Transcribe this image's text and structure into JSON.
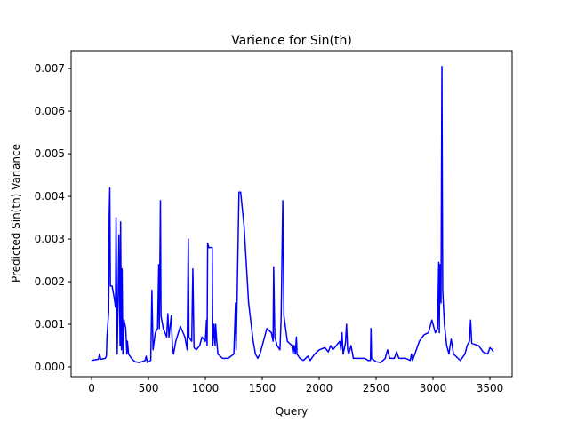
{
  "chart_data": {
    "type": "line",
    "title": "Varience for Sin(th)",
    "xlabel": "Query",
    "ylabel": "Predicted Sin(th) Variance",
    "xlim": [
      -180,
      3695
    ],
    "ylim": [
      -0.00023,
      0.00742
    ],
    "xticks": [
      0,
      500,
      1000,
      1500,
      2000,
      2500,
      3000,
      3500
    ],
    "yticks": [
      {
        "value": 0,
        "label": "0.000"
      },
      {
        "value": 0.001,
        "label": "0.001"
      },
      {
        "value": 0.002,
        "label": "0.002"
      },
      {
        "value": 0.003,
        "label": "0.003"
      },
      {
        "value": 0.004,
        "label": "0.004"
      },
      {
        "value": 0.005,
        "label": "0.005"
      },
      {
        "value": 0.006,
        "label": "0.006"
      },
      {
        "value": 0.007,
        "label": "0.007"
      }
    ],
    "series": [
      {
        "color": "#0000ff",
        "x": [
          0,
          60,
          70,
          80,
          120,
          130,
          135,
          150,
          155,
          160,
          165,
          180,
          200,
          210,
          215,
          225,
          235,
          240,
          250,
          255,
          262,
          268,
          275,
          285,
          300,
          310,
          315,
          325,
          350,
          380,
          420,
          470,
          480,
          490,
          520,
          530,
          540,
          560,
          580,
          590,
          595,
          605,
          610,
          630,
          660,
          670,
          680,
          700,
          710,
          720,
          740,
          780,
          820,
          840,
          850,
          855,
          880,
          890,
          900,
          920,
          950,
          970,
          1000,
          1010,
          1015,
          1020,
          1030,
          1060,
          1065,
          1075,
          1085,
          1090,
          1100,
          1110,
          1150,
          1200,
          1250,
          1265,
          1270,
          1280,
          1295,
          1310,
          1340,
          1380,
          1420,
          1440,
          1460,
          1480,
          1500,
          1540,
          1580,
          1595,
          1600,
          1610,
          1630,
          1655,
          1665,
          1680,
          1690,
          1720,
          1760,
          1770,
          1780,
          1790,
          1800,
          1805,
          1830,
          1860,
          1900,
          1920,
          1960,
          2000,
          2050,
          2080,
          2100,
          2120,
          2180,
          2190,
          2200,
          2210,
          2230,
          2240,
          2250,
          2260,
          2280,
          2300,
          2400,
          2430,
          2450,
          2455,
          2460,
          2500,
          2540,
          2580,
          2600,
          2620,
          2660,
          2680,
          2700,
          2760,
          2800,
          2810,
          2820,
          2880,
          2920,
          2960,
          2990,
          3000,
          3020,
          3040,
          3050,
          3055,
          3060,
          3070,
          3078,
          3085,
          3100,
          3120,
          3140,
          3150,
          3160,
          3180,
          3220,
          3240,
          3280,
          3300,
          3320,
          3330,
          3340,
          3400,
          3440,
          3480,
          3500,
          3520,
          3530
        ],
        "values": [
          0.00015,
          0.00018,
          0.0003,
          0.00018,
          0.0002,
          0.00025,
          0.0007,
          0.0013,
          0.0036,
          0.0042,
          0.0019,
          0.0019,
          0.0016,
          0.0014,
          0.0035,
          0.0003,
          0.002,
          0.0031,
          0.0005,
          0.0034,
          0.0004,
          0.0023,
          0.0003,
          0.0011,
          0.0009,
          0.0003,
          0.0006,
          0.0003,
          0.0002,
          0.00012,
          0.0001,
          0.00015,
          0.00025,
          0.0001,
          0.00015,
          0.0018,
          0.0004,
          0.0008,
          0.0009,
          0.0024,
          0.0009,
          0.0039,
          0.0012,
          0.0009,
          0.0007,
          0.00125,
          0.0007,
          0.0012,
          0.0005,
          0.0003,
          0.0006,
          0.00095,
          0.0007,
          0.0004,
          0.003,
          0.0007,
          0.0006,
          0.0023,
          0.00045,
          0.0004,
          0.0005,
          0.0007,
          0.0006,
          0.0011,
          0.0005,
          0.0029,
          0.0028,
          0.0028,
          0.0005,
          0.001,
          0.0005,
          0.001,
          0.0006,
          0.0003,
          0.0002,
          0.0002,
          0.0003,
          0.0015,
          0.0004,
          0.0018,
          0.0041,
          0.0041,
          0.0033,
          0.0015,
          0.0006,
          0.0003,
          0.0002,
          0.0003,
          0.0005,
          0.0009,
          0.0008,
          0.0006,
          0.00235,
          0.0007,
          0.0005,
          0.0004,
          0.0011,
          0.0039,
          0.0012,
          0.0006,
          0.0005,
          0.0003,
          0.0005,
          0.0003,
          0.0007,
          0.0003,
          0.0002,
          0.00015,
          0.00025,
          0.00015,
          0.0003,
          0.0004,
          0.00045,
          0.00035,
          0.0005,
          0.0004,
          0.0006,
          0.0004,
          0.0008,
          0.0003,
          0.00055,
          0.001,
          0.0004,
          0.0003,
          0.0005,
          0.0002,
          0.0002,
          0.00015,
          0.00015,
          0.0009,
          0.0002,
          0.00012,
          0.0001,
          0.0002,
          0.0004,
          0.0002,
          0.0002,
          0.00035,
          0.0002,
          0.0002,
          0.00015,
          0.0003,
          0.00015,
          0.0006,
          0.00075,
          0.0008,
          0.0011,
          0.001,
          0.0008,
          0.0009,
          0.00245,
          0.0008,
          0.0024,
          0.0015,
          0.00705,
          0.0018,
          0.001,
          0.0005,
          0.0003,
          0.0005,
          0.00065,
          0.0003,
          0.0002,
          0.00015,
          0.0003,
          0.0005,
          0.0006,
          0.0011,
          0.00055,
          0.0005,
          0.00035,
          0.0003,
          0.00045,
          0.0004,
          0.00035
        ]
      }
    ]
  }
}
